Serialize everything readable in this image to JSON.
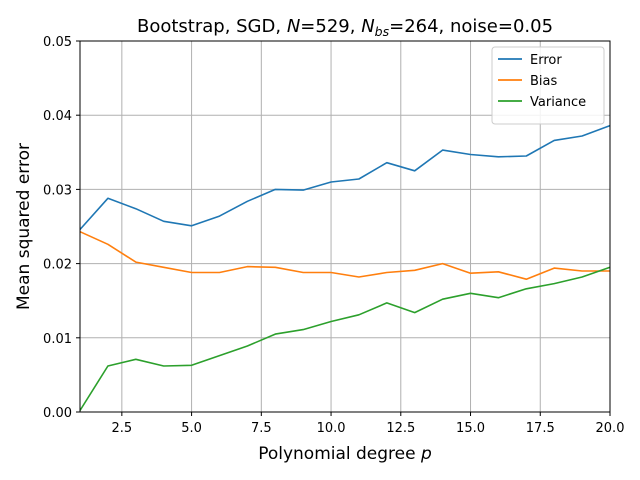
{
  "chart_data": {
    "type": "line",
    "title_parts": [
      {
        "t": "Bootstrap, SGD, ",
        "style": "normal"
      },
      {
        "t": "N",
        "style": "italic"
      },
      {
        "t": "=529, ",
        "style": "normal"
      },
      {
        "t": "N",
        "style": "italic"
      },
      {
        "t": "bs",
        "style": "italic-sub"
      },
      {
        "t": "=264, noise=0.05",
        "style": "normal"
      }
    ],
    "xlabel_parts": [
      {
        "t": "Polynomial degree ",
        "style": "normal"
      },
      {
        "t": "p",
        "style": "italic"
      }
    ],
    "ylabel": "Mean squared error",
    "xlim": [
      1,
      20
    ],
    "ylim": [
      0,
      0.05
    ],
    "xticks": [
      2.5,
      5.0,
      7.5,
      10.0,
      12.5,
      15.0,
      17.5,
      20.0
    ],
    "xtick_labels": [
      "2.5",
      "5.0",
      "7.5",
      "10.0",
      "12.5",
      "15.0",
      "17.5",
      "20.0"
    ],
    "yticks": [
      0.0,
      0.01,
      0.02,
      0.03,
      0.04,
      0.05
    ],
    "ytick_labels": [
      "0.00",
      "0.01",
      "0.02",
      "0.03",
      "0.04",
      "0.05"
    ],
    "grid": true,
    "legend_position": "top-right",
    "x": [
      1,
      2,
      3,
      4,
      5,
      6,
      7,
      8,
      9,
      10,
      11,
      12,
      13,
      14,
      15,
      16,
      17,
      18,
      19,
      20
    ],
    "series": [
      {
        "name": "Error",
        "color": "#1f77b4",
        "values": [
          0.0246,
          0.0288,
          0.0274,
          0.0257,
          0.0251,
          0.0264,
          0.0284,
          0.03,
          0.0299,
          0.031,
          0.0314,
          0.0336,
          0.0325,
          0.0353,
          0.0347,
          0.0344,
          0.0345,
          0.0366,
          0.0372,
          0.0386
        ]
      },
      {
        "name": "Bias",
        "color": "#ff7f0e",
        "values": [
          0.0243,
          0.0226,
          0.0202,
          0.0195,
          0.0188,
          0.0188,
          0.0196,
          0.0195,
          0.0188,
          0.0188,
          0.0182,
          0.0188,
          0.0191,
          0.02,
          0.0187,
          0.0189,
          0.0179,
          0.0194,
          0.019,
          0.019
        ]
      },
      {
        "name": "Variance",
        "color": "#2ca02c",
        "values": [
          0.0002,
          0.0062,
          0.0071,
          0.0062,
          0.0063,
          0.0076,
          0.0089,
          0.0105,
          0.0111,
          0.0122,
          0.0131,
          0.0147,
          0.0134,
          0.0152,
          0.016,
          0.0154,
          0.0166,
          0.0173,
          0.0182,
          0.0195
        ]
      }
    ]
  }
}
